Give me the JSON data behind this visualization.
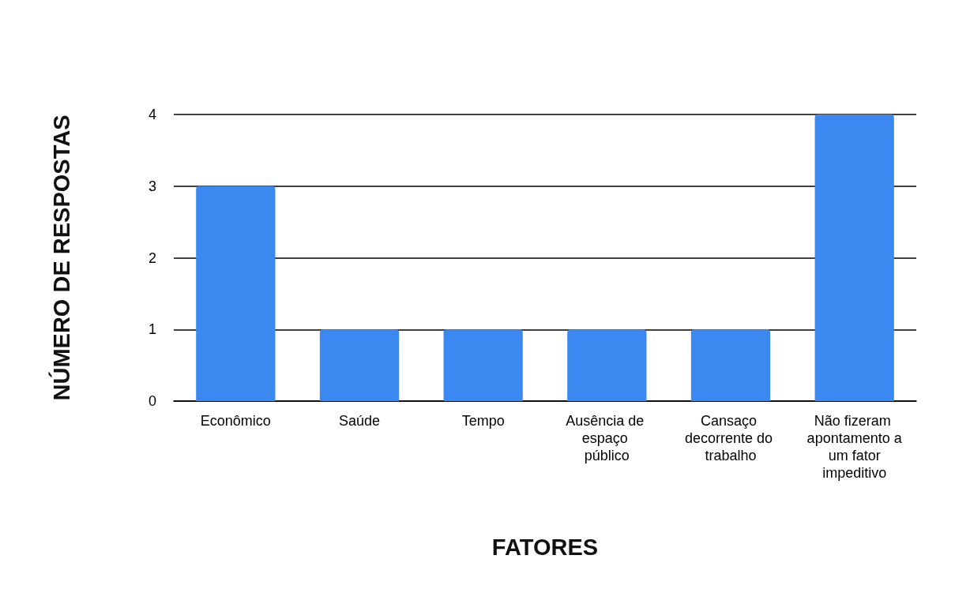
{
  "chart_data": {
    "type": "bar",
    "xlabel": "FATORES",
    "ylabel": "NÚMERO DE RESPOSTAS",
    "categories": [
      "Econômico",
      "Saúde",
      "Tempo",
      "Ausência de espaço público",
      "Cansaço decorrente do trabalho",
      "Não fizeram apontamento a um fator impeditivo"
    ],
    "values": [
      3,
      1,
      1,
      1,
      1,
      4
    ],
    "color": "#3a88f0",
    "ylim": [
      0,
      4
    ],
    "yticks": [
      0,
      1,
      2,
      3,
      4
    ],
    "grid": "y"
  }
}
